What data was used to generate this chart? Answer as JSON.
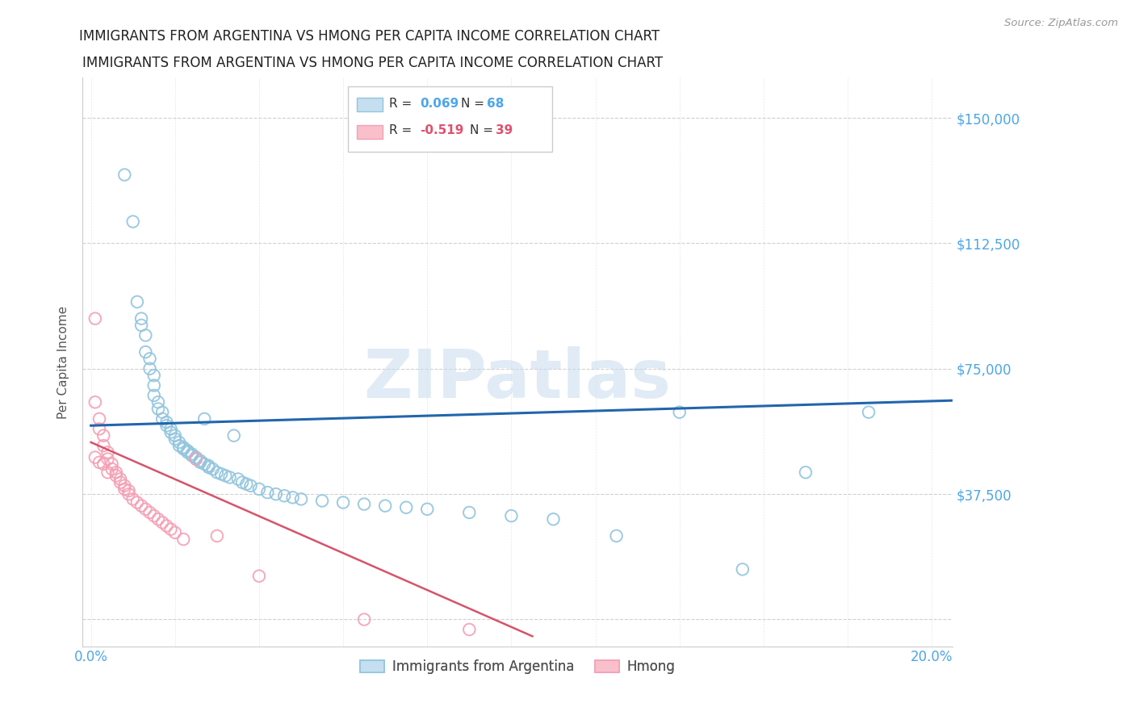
{
  "title": "IMMIGRANTS FROM ARGENTINA VS HMONG PER CAPITA INCOME CORRELATION CHART",
  "source": "Source: ZipAtlas.com",
  "ylabel_label": "Per Capita Income",
  "yticks": [
    0,
    37500,
    75000,
    112500,
    150000
  ],
  "ytick_labels": [
    "",
    "$37,500",
    "$75,000",
    "$112,500",
    "$150,000"
  ],
  "xlim": [
    -0.002,
    0.205
  ],
  "ylim": [
    -8000,
    162000
  ],
  "blue_color": "#92c5de",
  "pink_color": "#f4a0b5",
  "blue_line_color": "#2166ac",
  "pink_line_color": "#d6536a",
  "watermark_text": "ZIPatlas",
  "watermark_color": "#c8dcf0",
  "blue_scatter_x": [
    0.008,
    0.01,
    0.011,
    0.012,
    0.012,
    0.013,
    0.013,
    0.014,
    0.014,
    0.015,
    0.015,
    0.015,
    0.016,
    0.016,
    0.017,
    0.017,
    0.018,
    0.018,
    0.019,
    0.019,
    0.02,
    0.02,
    0.021,
    0.021,
    0.022,
    0.022,
    0.023,
    0.023,
    0.024,
    0.024,
    0.025,
    0.025,
    0.026,
    0.026,
    0.027,
    0.027,
    0.028,
    0.028,
    0.029,
    0.03,
    0.031,
    0.032,
    0.033,
    0.034,
    0.035,
    0.036,
    0.037,
    0.038,
    0.04,
    0.042,
    0.044,
    0.046,
    0.048,
    0.05,
    0.055,
    0.06,
    0.065,
    0.07,
    0.075,
    0.08,
    0.09,
    0.1,
    0.11,
    0.125,
    0.14,
    0.155,
    0.17,
    0.185
  ],
  "blue_scatter_y": [
    133000,
    119000,
    95000,
    90000,
    88000,
    85000,
    80000,
    78000,
    75000,
    73000,
    70000,
    67000,
    65000,
    63000,
    62000,
    60000,
    59000,
    58000,
    57000,
    56000,
    55000,
    54000,
    53000,
    52000,
    51500,
    51000,
    50500,
    50000,
    49500,
    49000,
    48500,
    48000,
    47500,
    47000,
    46500,
    60000,
    46000,
    45500,
    45000,
    44000,
    43500,
    43000,
    42500,
    55000,
    42000,
    41000,
    40500,
    40000,
    39000,
    38000,
    37500,
    37000,
    36500,
    36000,
    35500,
    35000,
    34500,
    34000,
    33500,
    33000,
    32000,
    31000,
    30000,
    25000,
    62000,
    15000,
    44000,
    62000
  ],
  "pink_scatter_x": [
    0.001,
    0.001,
    0.002,
    0.002,
    0.003,
    0.003,
    0.004,
    0.004,
    0.005,
    0.005,
    0.006,
    0.006,
    0.007,
    0.007,
    0.008,
    0.008,
    0.009,
    0.009,
    0.01,
    0.011,
    0.012,
    0.013,
    0.014,
    0.015,
    0.016,
    0.017,
    0.018,
    0.019,
    0.02,
    0.022,
    0.025,
    0.03,
    0.04,
    0.065,
    0.09,
    0.001,
    0.002,
    0.003,
    0.004
  ],
  "pink_scatter_y": [
    90000,
    65000,
    60000,
    57000,
    55000,
    52000,
    50000,
    48000,
    46500,
    45000,
    44000,
    43000,
    42000,
    41000,
    40000,
    39000,
    38500,
    37500,
    36000,
    35000,
    34000,
    33000,
    32000,
    31000,
    30000,
    29000,
    28000,
    27000,
    26000,
    24000,
    48000,
    25000,
    13000,
    0,
    -3000,
    48500,
    47000,
    46500,
    44000
  ],
  "blue_trend_x": [
    0.0,
    0.205
  ],
  "blue_trend_y": [
    58000,
    65500
  ],
  "pink_trend_x": [
    0.0,
    0.105
  ],
  "pink_trend_y": [
    53000,
    -5000
  ]
}
